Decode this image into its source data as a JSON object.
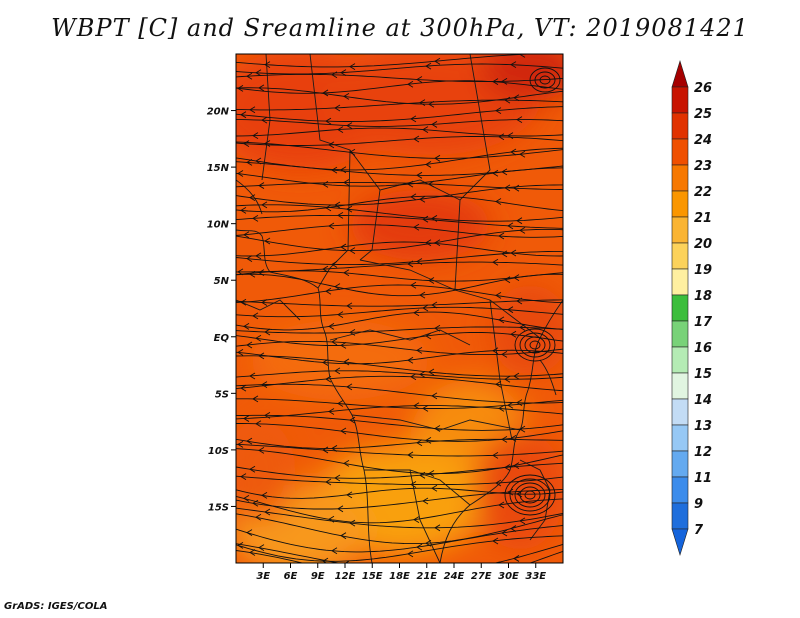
{
  "title": "WBPT [C] and Sreamline at 300hPa, VT: 2019081421",
  "footer": "GrADS: IGES/COLA",
  "map": {
    "lon_range": [
      0,
      36
    ],
    "lat_range": [
      -20,
      25
    ],
    "lat_ticks": [
      {
        "value": 20,
        "label": "20N"
      },
      {
        "value": 15,
        "label": "15N"
      },
      {
        "value": 10,
        "label": "10N"
      },
      {
        "value": 5,
        "label": "5N"
      },
      {
        "value": 0,
        "label": "EQ"
      },
      {
        "value": -5,
        "label": "5S"
      },
      {
        "value": -10,
        "label": "10S"
      },
      {
        "value": -15,
        "label": "15S"
      }
    ],
    "lon_ticks": [
      {
        "value": 3,
        "label": "3E"
      },
      {
        "value": 6,
        "label": "6E"
      },
      {
        "value": 9,
        "label": "9E"
      },
      {
        "value": 12,
        "label": "12E"
      },
      {
        "value": 15,
        "label": "15E"
      },
      {
        "value": 18,
        "label": "18E"
      },
      {
        "value": 21,
        "label": "21E"
      },
      {
        "value": 24,
        "label": "24E"
      },
      {
        "value": 27,
        "label": "27E"
      },
      {
        "value": 30,
        "label": "30E"
      },
      {
        "value": 33,
        "label": "33E"
      }
    ]
  },
  "colorbar": {
    "levels": [
      {
        "label": "26",
        "color": "#a50000"
      },
      {
        "label": "25",
        "color": "#c81400"
      },
      {
        "label": "24",
        "color": "#e13200"
      },
      {
        "label": "23",
        "color": "#f05000"
      },
      {
        "label": "22",
        "color": "#f77800"
      },
      {
        "label": "21",
        "color": "#fa9600"
      },
      {
        "label": "20",
        "color": "#fab432"
      },
      {
        "label": "19",
        "color": "#fcd25a"
      },
      {
        "label": "18",
        "color": "#fff0a0"
      },
      {
        "label": "17",
        "color": "#3cbe3c"
      },
      {
        "label": "16",
        "color": "#78d278"
      },
      {
        "label": "15",
        "color": "#b4ebb4"
      },
      {
        "label": "14",
        "color": "#e1f5e1"
      },
      {
        "label": "13",
        "color": "#c3dcf5"
      },
      {
        "label": "12",
        "color": "#96c8f5"
      },
      {
        "label": "11",
        "color": "#64aaf0"
      },
      {
        "label": "9",
        "color": "#3c8ceb"
      },
      {
        "label": "7",
        "color": "#1e6edc"
      }
    ],
    "top_color": "#a50000",
    "bottom_color": "#1464dc"
  }
}
